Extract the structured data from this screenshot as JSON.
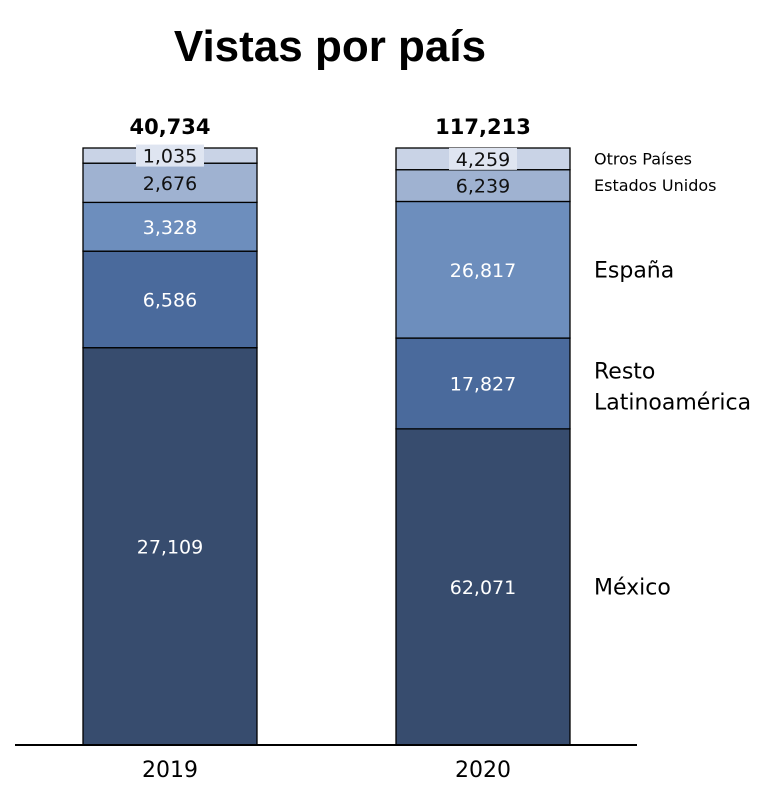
{
  "chart_data": {
    "type": "bar",
    "stacked": true,
    "title": "Vistas por país",
    "categories": [
      "2019",
      "2020"
    ],
    "totals": [
      "40,734",
      "117,213"
    ],
    "series": [
      {
        "name": "México",
        "values": [
          27109,
          62071
        ],
        "labels": [
          "27,109",
          "62,071"
        ],
        "color": "#374c6e",
        "text_color": "#ffffff"
      },
      {
        "name": "Resto Latinoamérica",
        "values": [
          6586,
          17827
        ],
        "labels": [
          "6,586",
          "17,827"
        ],
        "color": "#4a6a9c",
        "text_color": "#ffffff"
      },
      {
        "name": "España",
        "values": [
          3328,
          26817
        ],
        "labels": [
          "3,328",
          "26,817"
        ],
        "color": "#6d8ebd",
        "text_color": "#ffffff"
      },
      {
        "name": "Estados Unidos",
        "values": [
          2676,
          6239
        ],
        "labels": [
          "2,676",
          "6,239"
        ],
        "color": "#9fb2d1",
        "text_color": "#111111"
      },
      {
        "name": "Otros Países",
        "values": [
          1035,
          4259
        ],
        "labels": [
          "1,035",
          "4,259"
        ],
        "color": "#c9d3e6",
        "text_color": "#111111"
      }
    ],
    "legend_placement": "right",
    "normalized": true,
    "grid": false
  }
}
